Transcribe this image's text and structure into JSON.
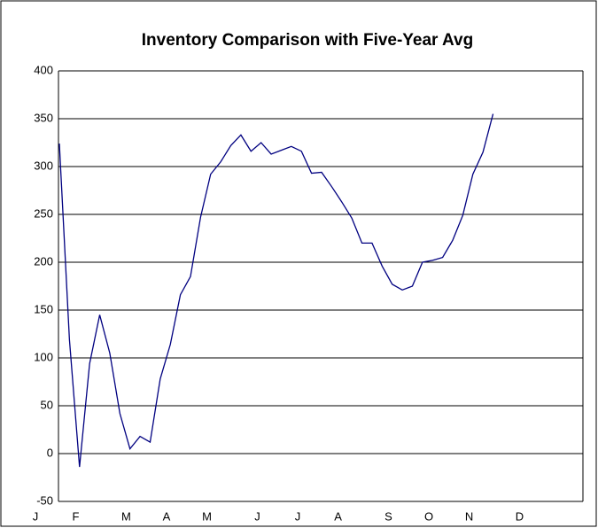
{
  "chart_data": {
    "type": "line",
    "title": "Inventory Comparison with Five-Year Avg",
    "categories": [
      "J",
      null,
      null,
      null,
      "F",
      null,
      null,
      null,
      null,
      "M",
      null,
      null,
      null,
      "A",
      null,
      null,
      null,
      "M",
      null,
      null,
      null,
      null,
      "J",
      null,
      null,
      null,
      "J",
      null,
      null,
      null,
      "A",
      null,
      null,
      null,
      null,
      "S",
      null,
      null,
      null,
      "O",
      null,
      null,
      null,
      "N",
      null,
      null,
      null,
      null,
      "D",
      null,
      null,
      null
    ],
    "series": [
      {
        "name": null,
        "color": "#000080",
        "values": [
          324,
          119,
          -14,
          94,
          145,
          105,
          42,
          5,
          18,
          12,
          78,
          114,
          166,
          185,
          247,
          292,
          305,
          322,
          333,
          316,
          325,
          313,
          317,
          321,
          316,
          293,
          294,
          279,
          263,
          246,
          220,
          220,
          196,
          177,
          171,
          175,
          200,
          202,
          205,
          223,
          249,
          292,
          315,
          355,
          null,
          null,
          null,
          null,
          null,
          null,
          null,
          null
        ]
      }
    ],
    "ylim": [
      -50,
      400
    ],
    "yticks": [
      -50,
      0,
      50,
      100,
      150,
      200,
      250,
      300,
      350,
      400
    ],
    "grid": true
  }
}
